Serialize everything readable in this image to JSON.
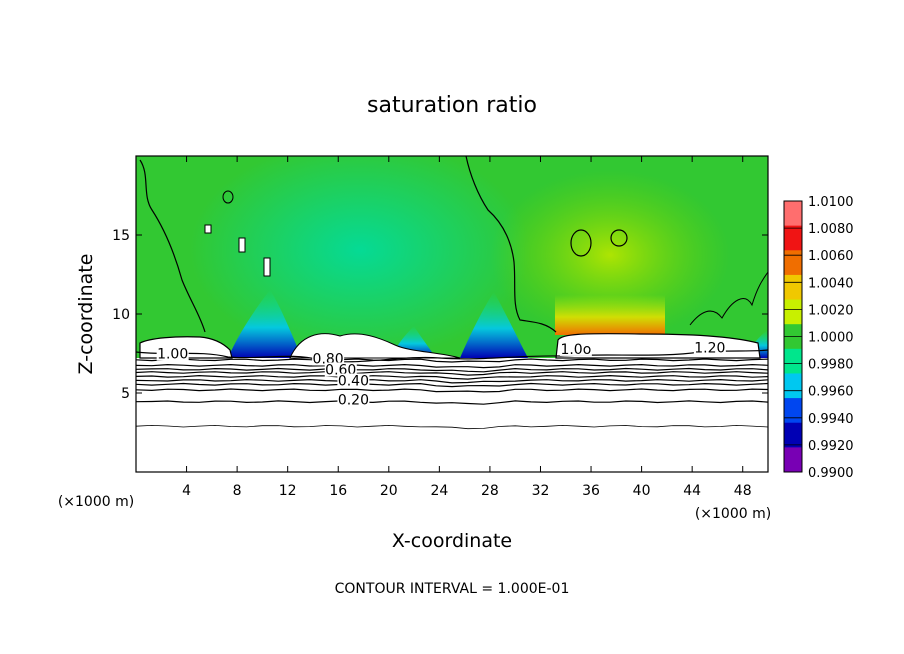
{
  "chart_data": {
    "type": "heatmap",
    "title": "saturation ratio",
    "xlabel": "X-coordinate",
    "ylabel": "Z-coordinate",
    "x_unit_left": "(×1000 m)",
    "x_unit_right": "(×1000 m)",
    "footer": "CONTOUR INTERVAL = 1.000E-01",
    "xlim": [
      0,
      50
    ],
    "ylim": [
      0,
      20
    ],
    "xticks": [
      4,
      8,
      12,
      16,
      20,
      24,
      28,
      32,
      36,
      40,
      44,
      48
    ],
    "yticks": [
      5,
      10,
      15
    ],
    "colorbar": {
      "ticks": [
        "1.0100",
        "1.0080",
        "1.0060",
        "1.0040",
        "1.0020",
        "1.0000",
        "0.9980",
        "0.9960",
        "0.9940",
        "0.9920",
        "0.9900"
      ],
      "colors": [
        "#ff6e6e",
        "#f01414",
        "#f06e00",
        "#f0c800",
        "#c8f000",
        "#32c832",
        "#00e68c",
        "#00c8f0",
        "#0046f0",
        "#0000b4",
        "#7800b4"
      ]
    },
    "contour_labels": [
      {
        "text": "1.00",
        "x": 2.9,
        "z": 7.3
      },
      {
        "text": "0.80",
        "x": 15.2,
        "z": 7.0
      },
      {
        "text": "0.60",
        "x": 16.2,
        "z": 6.3
      },
      {
        "text": "0.40",
        "x": 17.2,
        "z": 5.6
      },
      {
        "text": "0.20",
        "x": 17.2,
        "z": 4.4
      },
      {
        "text": "1.20",
        "x": 45.4,
        "z": 7.7
      },
      {
        "text": "1.0o",
        "x": 34.8,
        "z": 7.6
      }
    ],
    "contours_below_cloud_z": [
      7.1,
      6.75,
      6.5,
      6.3,
      6.05,
      5.8,
      5.55,
      5.2,
      4.45,
      2.9
    ],
    "cloud_base_z": 7.3,
    "background_level": "1.0000"
  }
}
